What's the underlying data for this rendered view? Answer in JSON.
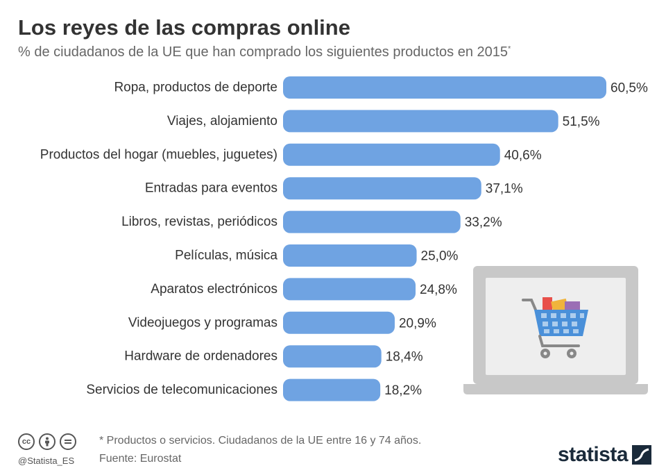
{
  "header": {
    "title": "Los reyes de las compras online",
    "subtitle": "% de ciudadanos de la UE que han comprado los siguientes productos en 2015",
    "subtitle_mark": "*"
  },
  "chart_data": {
    "type": "bar",
    "orientation": "horizontal",
    "categories": [
      "Ropa, productos de deporte",
      "Viajes, alojamiento",
      "Productos del hogar (muebles, juguetes)",
      "Entradas para eventos",
      "Libros, revistas, periódicos",
      "Películas, música",
      "Aparatos electrónicos",
      "Videojuegos y programas",
      "Hardware de ordenadores",
      "Servicios de telecomunicaciones"
    ],
    "values": [
      60.5,
      51.5,
      40.6,
      37.1,
      33.2,
      25.0,
      24.8,
      20.9,
      18.4,
      18.2
    ],
    "value_labels": [
      "60,5%",
      "51,5%",
      "40,6%",
      "37,1%",
      "33,2%",
      "25,0%",
      "24,8%",
      "20,9%",
      "18,4%",
      "18,2%"
    ],
    "xlim": [
      0,
      60.5
    ],
    "bar_color": "#6fa3e2",
    "grid": false
  },
  "illustration": {
    "icon": "laptop-shopping-cart-icon",
    "colors": {
      "laptop_frame": "#c8c8c8",
      "laptop_screen": "#eeeeee",
      "cart_frame": "#888888",
      "cart_basket": "#4a90d9",
      "items": [
        "#e8504a",
        "#f0b43c",
        "#9b6fb5",
        "#6fa3e2"
      ]
    }
  },
  "footer": {
    "footnote": "* Productos o servicios. Ciudadanos de la UE entre 16 y 74 años.",
    "source": "Fuente: Eurostat",
    "handle": "@Statista_ES",
    "brand": "statista"
  }
}
